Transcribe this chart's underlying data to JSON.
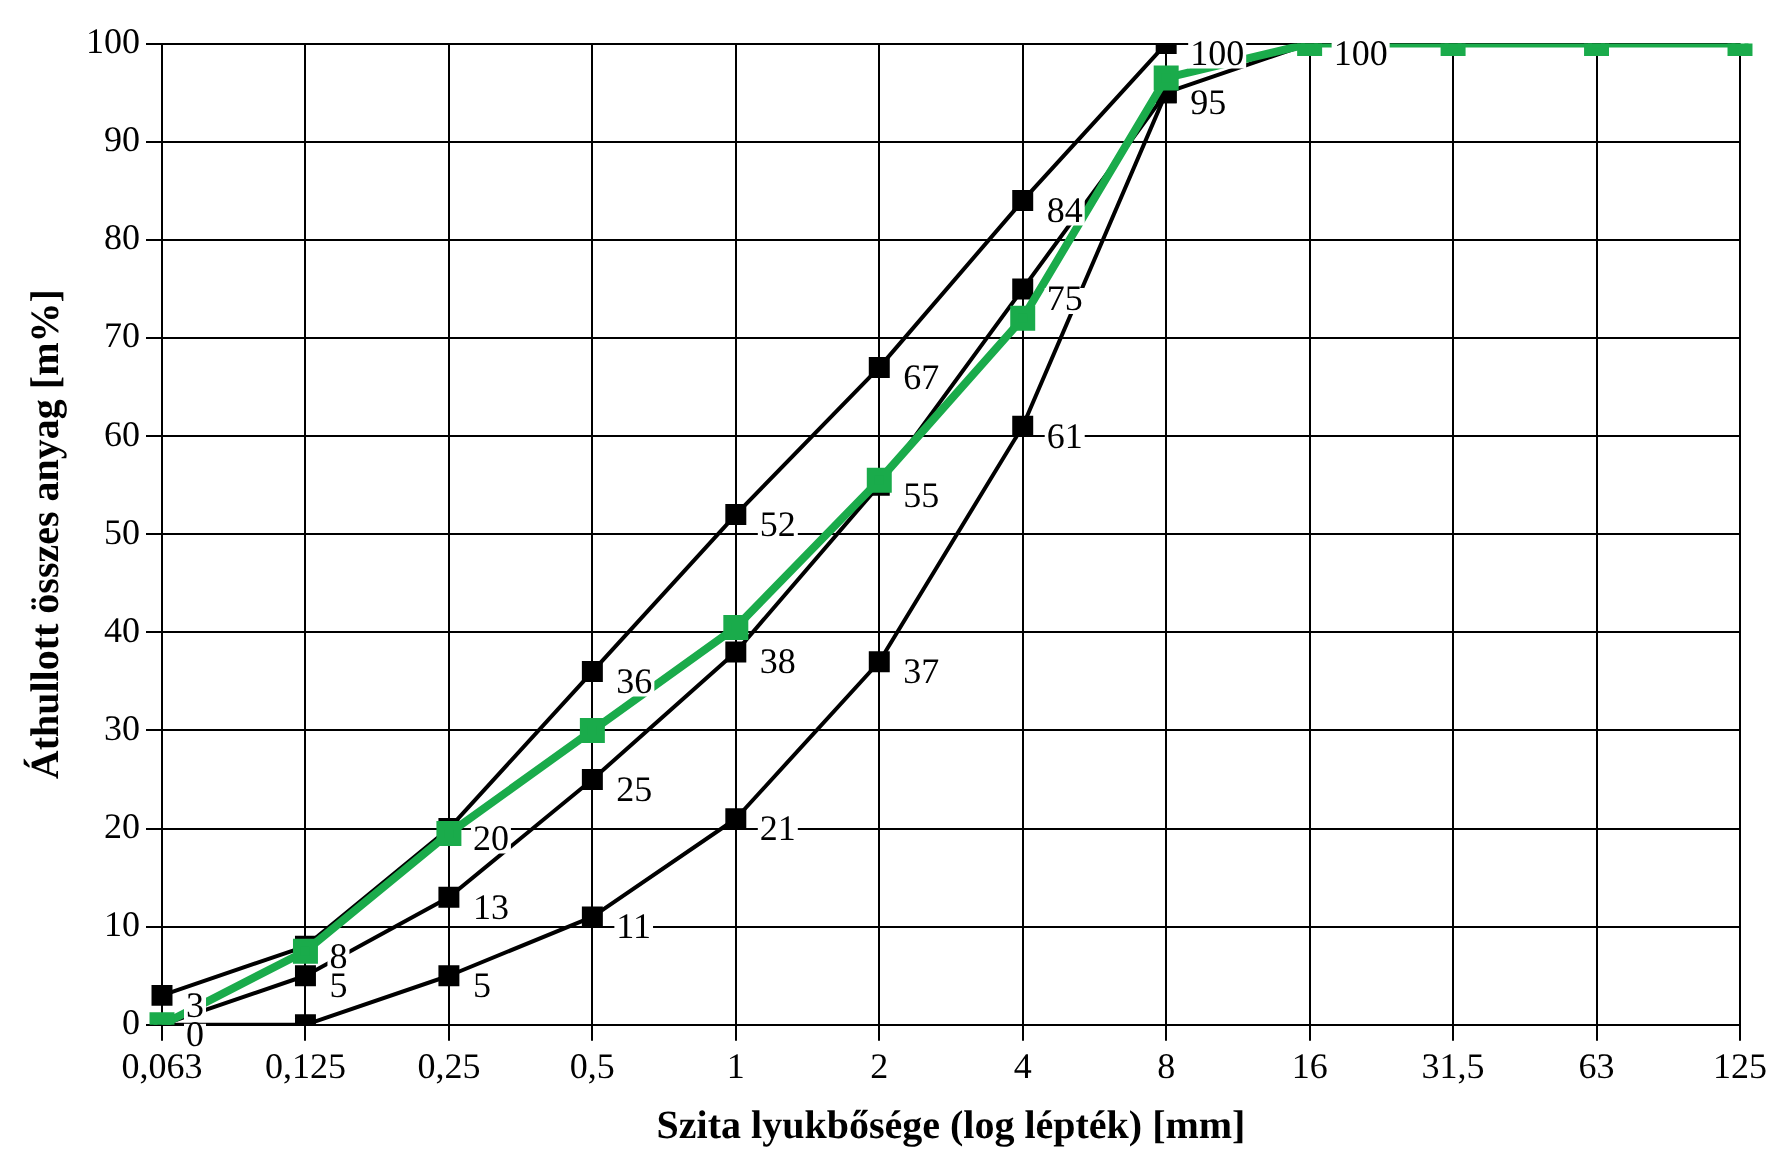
{
  "chart_data": {
    "type": "line",
    "xlabel": "Szita lyukbősége (log lépték) [mm]",
    "ylabel": "Áthullott összes anyag [m%]",
    "categories": [
      "0,063",
      "0,125",
      "0,25",
      "0,5",
      "1",
      "2",
      "4",
      "8",
      "16",
      "31,5",
      "63",
      "125"
    ],
    "ylim": [
      0,
      100
    ],
    "yticks": [
      0,
      10,
      20,
      30,
      40,
      50,
      60,
      70,
      80,
      90,
      100
    ],
    "grid": true,
    "legend": false,
    "marker": "square",
    "line_style": "solid",
    "series": [
      {
        "color": "#000000",
        "values": [
          3,
          8,
          20,
          36,
          52,
          67,
          84,
          100,
          null,
          null,
          null,
          null
        ],
        "value_labels": [
          "3",
          "8",
          "20",
          "36",
          "52",
          "67",
          "84",
          "100",
          null,
          null,
          null,
          null
        ]
      },
      {
        "color": "#000000",
        "values": [
          0,
          5,
          13,
          25,
          38,
          55,
          75,
          95,
          100,
          null,
          null,
          null
        ],
        "value_labels": [
          "0",
          "5",
          "13",
          "25",
          "38",
          "55",
          "75",
          "95",
          "100",
          null,
          null,
          null
        ]
      },
      {
        "color": "#000000",
        "values": [
          0,
          0,
          5,
          11,
          21,
          37,
          61,
          95,
          null,
          null,
          null,
          null
        ],
        "value_labels": [
          null,
          null,
          "5",
          "11",
          "21",
          "37",
          "61",
          null,
          null,
          null,
          null,
          null
        ]
      },
      {
        "color": "#1aab4b",
        "values": [
          0,
          7.5,
          19.5,
          30,
          40.5,
          55.5,
          72,
          96.5,
          100,
          100,
          100,
          100
        ]
      }
    ]
  }
}
